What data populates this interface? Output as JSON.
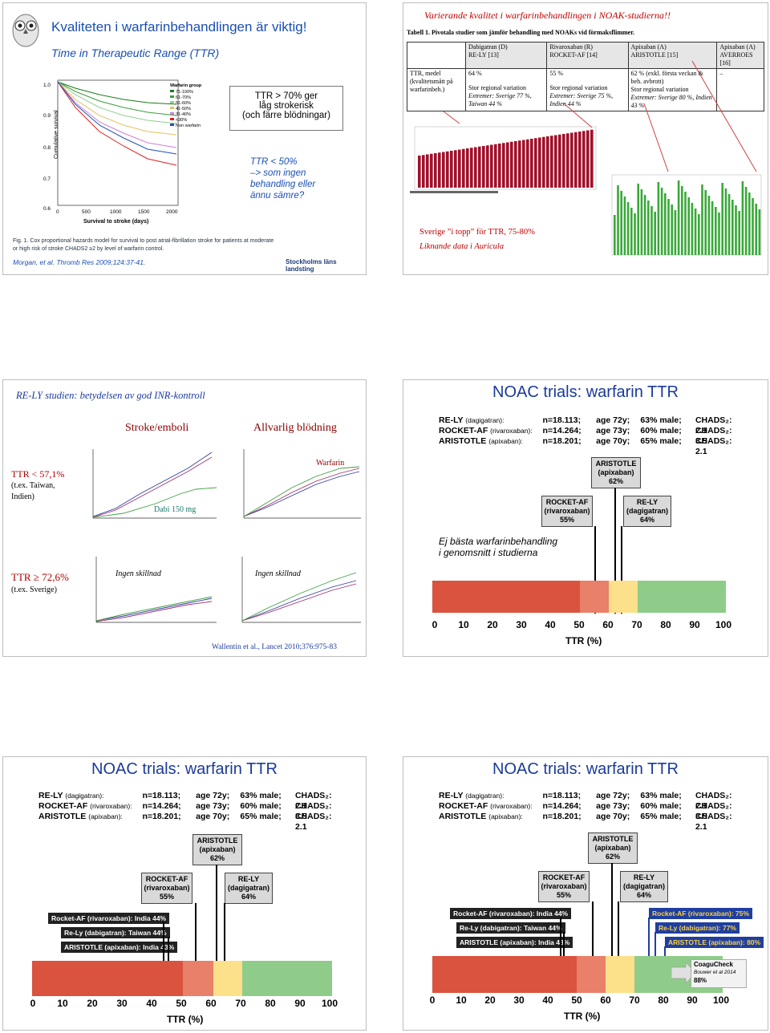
{
  "slide1": {
    "title": "Kvaliteten i warfarinbehandlingen är viktig!",
    "subtitle": "Time in Therapeutic Range (TTR)",
    "box_lines": [
      "TTR > 70% ger",
      "låg strokerisk",
      "(och färre blödningar)"
    ],
    "note_lines": [
      "TTR < 50%",
      "–> som ingen",
      "behandling eller",
      "ännu sämre?"
    ],
    "caption": "Fig. 1. Cox proportional hazards model for survival to post atrial-fibrillation stroke for patients at moderate or high risk of stroke CHADS2 ≥2 by level of warfarin control.",
    "ref": "Morgan, et al. Thromb Res 2009;124:37-41.",
    "logo": "Stockholms läns landsting",
    "ylabel": "Cumulative survival",
    "xlabel": "Survival to stroke (days)",
    "yticks": [
      "1.0",
      "0.9",
      "0.8",
      "0.7",
      "0.6"
    ],
    "xticks": [
      "0",
      "500",
      "1000",
      "1500",
      "2000"
    ],
    "legend_title": "Warfarin group",
    "legend": [
      "71-100%",
      "61-70%",
      "51-60%",
      "41-50%",
      "31-40%",
      "<30%",
      "Non warfarin"
    ]
  },
  "slide2": {
    "title": "Varierande kvalitet i warfarinbehandlingen i NOAK-studierna!!",
    "caption": "Tabell 1. Pivotala studier som jämför behandling med NOAKs vid förmaksflimmer.",
    "headers": [
      [
        "Dabigatran (D)",
        "RE-LY [13]"
      ],
      [
        "Rivaroxaban (R)",
        "ROCKET-AF [14]"
      ],
      [
        "Apixaban (A)",
        "ARISTOTLE [15]"
      ],
      [
        "Apixaban (A)",
        "AVERROES [16]"
      ]
    ],
    "rowlabel": "TTR, medel (kvalitetsmått på warfarinbeh.)",
    "cells": [
      [
        "64 %",
        "",
        "Stor regional variation",
        "Extremer: Sverige 77 %, Taiwan 44 %"
      ],
      [
        "55 %",
        "",
        "Stor regional variation",
        "Extremer: Sverige 75 %, Indien 44 %"
      ],
      [
        "62 % (exkl. första veckan & beh. avbrott)",
        "Stor regional variation",
        "Extremer: Sverige 80 %, Indien 43 %",
        ""
      ],
      [
        "–",
        "",
        "",
        ""
      ]
    ],
    "sver1": "Sverige ”i topp” för TTR, 75-80%",
    "sver2": "Liknande data i Auricula"
  },
  "slide3": {
    "title": "RE-LY studien: betydelsen av god INR-kontroll",
    "h1": "Stroke/emboli",
    "h2": "Allvarlig blödning",
    "ttr1": "TTR < 57,1%",
    "ttr1b": "(t.ex. Taiwan,",
    "ttr1c": "Indien)",
    "ttr2": "TTR ≥ 72,6%",
    "ttr2b": "(t.ex. Sverige)",
    "dabi": "Dabi 150 mg",
    "warfarin": "Warfarin",
    "ingen1": "Ingen skillnad",
    "ingen2": "Ingen skillnad",
    "ref": "Wallentin et al., Lancet 2010;376:975-83"
  },
  "noac": {
    "title": "NOAC trials: warfarin TTR",
    "rows": [
      {
        "trial": "RE-LY",
        "drug": "(dagigatran):",
        "n": "n=18.113;",
        "age": "age 72y;",
        "male": "63% male;",
        "chads": "CHADS₂: 2.1"
      },
      {
        "trial": "ROCKET-AF",
        "drug": "(rivaroxaban):",
        "n": "n=14.264;",
        "age": "age 73y;",
        "male": "60% male;",
        "chads": "CHADS₂: 3.5"
      },
      {
        "trial": "ARISTOTLE",
        "drug": "(apixaban):",
        "n": "n=18.201;",
        "age": "age 70y;",
        "male": "65% male;",
        "chads": "CHADS₂: 2.1"
      }
    ],
    "aristotle": [
      "ARISTOTLE",
      "(apixaban)",
      "62%"
    ],
    "rocket": [
      "ROCKET-AF",
      "(rivaroxaban)",
      "55%"
    ],
    "rely": [
      "RE-LY",
      "(dagigatran)",
      "64%"
    ],
    "note": [
      "Ej bästa warfarinbehandling",
      "i genomsnitt i studierna"
    ],
    "ticks": [
      "0",
      "10",
      "20",
      "30",
      "40",
      "50",
      "60",
      "70",
      "80",
      "90",
      "100"
    ],
    "xlabel": "TTR (%)",
    "low": [
      "Rocket-AF (rivaroxaban): India 44%",
      "Re-Ly (dabigatran): Taiwan 44%",
      "ARISTOTLE (apixaban): India 43%"
    ],
    "high": [
      "Rocket-AF (rivaroxaban): 75%",
      "Re-Ly (dabigatran): 77%",
      "ARISTOTLE (apixaban): 80%"
    ],
    "coagu": [
      "CoaguCheck",
      "Bouwer et al 2014",
      "88%"
    ],
    "colors": {
      "red": "#d9533e",
      "salmon": "#e8806a",
      "yellow": "#fde08a",
      "green": "#8fcc8a"
    }
  }
}
